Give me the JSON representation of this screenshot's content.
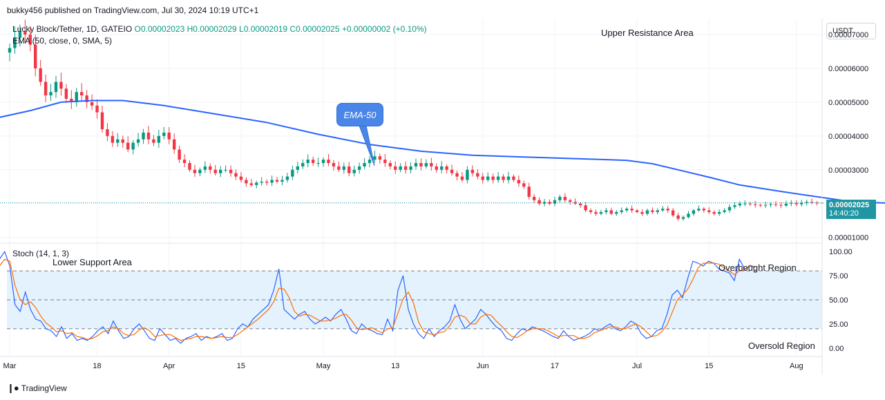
{
  "header": {
    "published": "bukky456 published on TradingView.com, Jul 30, 2024 10:19 UTC+1",
    "symbol": "Lucky Block/Tether, 1D, GATEIO",
    "open": "O0.00002023",
    "high": "H0.00002029",
    "low": "L0.00002019",
    "close": "C0.00002025",
    "change": "+0.00000002 (+0.10%)",
    "ema_label": "EMA (50, close, 0, SMA, 5)",
    "stoch_label": "Stoch (14, 1, 3)"
  },
  "currency_button": "USDT",
  "price_tag": {
    "price": "0.00002025",
    "countdown": "14:40:20"
  },
  "annotations": {
    "upper": "Upper Resistance Area",
    "lower": "Lower Support Area",
    "overbought": "Overbought Region",
    "oversold": "Oversold Region",
    "ema_callout": "EMA-50"
  },
  "footer_brand": "TradingView",
  "colors": {
    "up": "#089981",
    "down": "#f23645",
    "ema": "#2962ff",
    "k": "#2962ff",
    "d": "#ff6d00",
    "band": "#e3f2fd"
  },
  "chart_data": [
    {
      "type": "candlestick",
      "price_axis_ticks": [
        "0.00007000",
        "0.00006000",
        "0.00005000",
        "0.00004000",
        "0.00003000",
        "0.00002000",
        "0.00001000"
      ],
      "price_axis_values": [
        7e-05,
        6e-05,
        5e-05,
        4e-05,
        3e-05,
        2e-05,
        1e-05
      ],
      "x_ticks": [
        "Mar",
        "18",
        "Apr",
        "15",
        "May",
        "13",
        "Jun",
        "17",
        "Jul",
        "15",
        "Aug"
      ],
      "x_tick_days": [
        0,
        17,
        31,
        45,
        61,
        75,
        92,
        106,
        122,
        136,
        153
      ],
      "ylim": [
        8.5e-06,
        7.45e-05
      ],
      "last_price": 2.025e-05,
      "close_series": [
        6.6e-05,
        6.9e-05,
        7.1e-05,
        7e-05,
        6.7e-05,
        6e-05,
        5.6e-05,
        5.2e-05,
        5.3e-05,
        5.6e-05,
        5.4e-05,
        5.1e-05,
        5e-05,
        5.3e-05,
        5.2e-05,
        5e-05,
        4.9e-05,
        4.7e-05,
        4.2e-05,
        4e-05,
        3.8e-05,
        3.9e-05,
        3.8e-05,
        3.6e-05,
        3.8e-05,
        3.9e-05,
        4.1e-05,
        3.9e-05,
        3.8e-05,
        4e-05,
        4.1e-05,
        3.9e-05,
        3.6e-05,
        3.3e-05,
        3.2e-05,
        3e-05,
        2.9e-05,
        3e-05,
        3.1e-05,
        3e-05,
        2.9e-05,
        3e-05,
        3e-05,
        2.9e-05,
        2.8e-05,
        2.7e-05,
        2.6e-05,
        2.55e-05,
        2.62e-05,
        2.65e-05,
        2.62e-05,
        2.7e-05,
        2.65e-05,
        2.7e-05,
        2.8e-05,
        3e-05,
        3.1e-05,
        3.2e-05,
        3.3e-05,
        3.2e-05,
        3.2e-05,
        3.3e-05,
        3.2e-05,
        3.1e-05,
        3e-05,
        3.1e-05,
        2.9e-05,
        3e-05,
        3.1e-05,
        3.2e-05,
        3.3e-05,
        3.4e-05,
        3.3e-05,
        3.2e-05,
        3.1e-05,
        3e-05,
        3.1e-05,
        3e-05,
        3.1e-05,
        3.2e-05,
        3.1e-05,
        3.2e-05,
        3.1e-05,
        3e-05,
        3.1e-05,
        3e-05,
        2.9e-05,
        2.8e-05,
        2.7e-05,
        3e-05,
        2.9e-05,
        2.8e-05,
        2.7e-05,
        2.8e-05,
        2.7e-05,
        2.8e-05,
        2.7e-05,
        2.8e-05,
        2.7e-05,
        2.6e-05,
        2.5e-05,
        2.2e-05,
        2.1e-05,
        2e-05,
        2.05e-05,
        2e-05,
        2.1e-05,
        2.2e-05,
        2.1e-05,
        2.05e-05,
        2e-05,
        1.95e-05,
        1.8e-05,
        1.75e-05,
        1.7e-05,
        1.75e-05,
        1.8e-05,
        1.7e-05,
        1.75e-05,
        1.8e-05,
        1.85e-05,
        1.8e-05,
        1.75e-05,
        1.7e-05,
        1.8e-05,
        1.75e-05,
        1.8e-05,
        1.85e-05,
        1.8e-05,
        1.65e-05,
        1.55e-05,
        1.6e-05,
        1.7e-05,
        1.8e-05,
        1.85e-05,
        1.8e-05,
        1.75e-05,
        1.7e-05,
        1.75e-05,
        1.8e-05,
        1.9e-05,
        1.95e-05,
        2e-05,
        2e-05,
        1.98e-05,
        1.96e-05,
        1.94e-05,
        1.96e-05,
        1.98e-05,
        1.96e-05,
        1.94e-05,
        2e-05,
        2.02e-05,
        1.98e-05,
        2.02e-05,
        2.05e-05,
        2.03e-05,
        2.02e-05,
        2.025e-05
      ],
      "series": [
        {
          "name": "EMA (50, close, 0, SMA, 5)",
          "role": "ema",
          "points": [
            [
              -2,
              4.55e-05
            ],
            [
              4,
              4.75e-05
            ],
            [
              10,
              5e-05
            ],
            [
              16,
              5.05e-05
            ],
            [
              22,
              5.05e-05
            ],
            [
              30,
              4.9e-05
            ],
            [
              40,
              4.65e-05
            ],
            [
              50,
              4.4e-05
            ],
            [
              60,
              4.05e-05
            ],
            [
              70,
              3.75e-05
            ],
            [
              80,
              3.55e-05
            ],
            [
              90,
              3.43e-05
            ],
            [
              100,
              3.38e-05
            ],
            [
              110,
              3.33e-05
            ],
            [
              120,
              3.28e-05
            ],
            [
              125,
              3.18e-05
            ],
            [
              130,
              3e-05
            ],
            [
              136,
              2.78e-05
            ],
            [
              142,
              2.55e-05
            ],
            [
              150,
              2.36e-05
            ],
            [
              158,
              2.18e-05
            ],
            [
              164,
              2.05e-05
            ],
            [
              170,
              2.02e-05
            ],
            [
              176,
              2.02e-05
            ]
          ]
        }
      ]
    },
    {
      "type": "line",
      "title": "Stoch (14, 1, 3)",
      "y_ticks": [
        "100.00",
        "75.00",
        "50.00",
        "25.00",
        "0.00"
      ],
      "y_tick_values": [
        100,
        75,
        50,
        25,
        0
      ],
      "ylim": [
        -8,
        108
      ],
      "bands": [
        20,
        50,
        80
      ],
      "series": [
        {
          "name": "%K",
          "values": [
            88,
            78,
            92,
            100,
            85,
            45,
            38,
            58,
            40,
            30,
            28,
            20,
            18,
            12,
            22,
            10,
            15,
            8,
            10,
            8,
            12,
            18,
            22,
            15,
            28,
            18,
            10,
            12,
            20,
            25,
            18,
            10,
            8,
            20,
            14,
            8,
            10,
            5,
            10,
            12,
            15,
            8,
            12,
            10,
            12,
            15,
            8,
            10,
            20,
            25,
            22,
            30,
            35,
            40,
            45,
            60,
            82,
            40,
            35,
            30,
            35,
            38,
            30,
            25,
            28,
            32,
            28,
            35,
            40,
            30,
            18,
            15,
            25,
            20,
            18,
            15,
            14,
            30,
            18,
            60,
            75,
            40,
            25,
            15,
            10,
            20,
            12,
            18,
            22,
            28,
            45,
            30,
            20,
            25,
            30,
            40,
            35,
            28,
            22,
            18,
            10,
            8,
            15,
            20,
            18,
            22,
            20,
            18,
            15,
            12,
            10,
            18,
            12,
            8,
            10,
            12,
            15,
            20,
            18,
            22,
            25,
            20,
            18,
            22,
            28,
            25,
            15,
            10,
            12,
            18,
            20,
            35,
            55,
            60,
            52,
            72,
            90,
            88,
            85,
            90,
            88,
            82,
            80,
            78,
            70,
            92,
            82,
            85,
            84
          ]
        },
        {
          "name": "%D",
          "values": [
            82,
            80,
            85,
            92,
            90,
            65,
            50,
            45,
            48,
            42,
            33,
            26,
            22,
            17,
            18,
            15,
            16,
            12,
            11,
            9,
            10,
            13,
            17,
            18,
            22,
            20,
            15,
            13,
            14,
            19,
            21,
            18,
            12,
            13,
            14,
            14,
            11,
            8,
            9,
            10,
            12,
            12,
            11,
            10,
            11,
            12,
            11,
            11,
            14,
            18,
            22,
            26,
            30,
            35,
            40,
            48,
            62,
            61,
            52,
            38,
            33,
            35,
            34,
            31,
            28,
            28,
            29,
            31,
            34,
            35,
            29,
            21,
            19,
            20,
            21,
            18,
            16,
            20,
            21,
            36,
            51,
            58,
            47,
            27,
            17,
            15,
            14,
            16,
            17,
            23,
            32,
            34,
            32,
            25,
            25,
            32,
            35,
            34,
            28,
            23,
            17,
            12,
            11,
            14,
            18,
            20,
            20,
            20,
            18,
            15,
            12,
            13,
            13,
            13,
            10,
            10,
            12,
            16,
            18,
            20,
            22,
            22,
            20,
            20,
            23,
            25,
            22,
            17,
            12,
            13,
            17,
            24,
            37,
            50,
            55,
            61,
            71,
            83,
            88,
            88,
            88,
            87,
            83,
            80,
            76,
            80,
            81,
            86,
            84
          ]
        }
      ]
    }
  ]
}
